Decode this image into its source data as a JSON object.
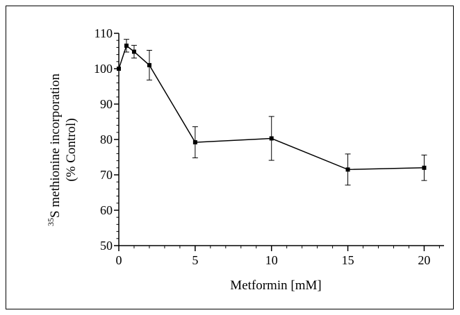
{
  "chart_data": {
    "type": "line",
    "xlabel": "Metformin [mM]",
    "ylabel_sup": "35",
    "ylabel_line1": "S methionine incorporation",
    "ylabel_line2": "(% Control)",
    "xlim": [
      0,
      21.3
    ],
    "ylim": [
      50,
      110
    ],
    "x_ticks": [
      0,
      5,
      10,
      15,
      20
    ],
    "y_ticks": [
      50,
      60,
      70,
      80,
      90,
      100,
      110
    ],
    "x_minor_step": 1,
    "y_minor_step": 2,
    "series": [
      {
        "x": [
          0,
          0.5,
          1,
          2,
          5,
          10,
          15,
          20
        ],
        "y": [
          100,
          106.5,
          104.8,
          101,
          79.2,
          80.3,
          71.5,
          72
        ],
        "err": [
          0,
          1.8,
          1.8,
          4.2,
          4.4,
          6.2,
          4.4,
          3.6
        ]
      }
    ]
  }
}
